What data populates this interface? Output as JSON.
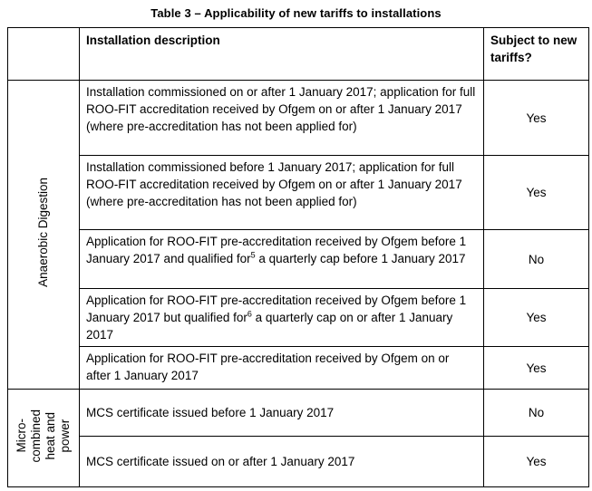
{
  "title": "Table 3 – Applicability of new tariffs to installations",
  "colors": {
    "background": "#ffffff",
    "border": "#000000",
    "text": "#000000"
  },
  "table": {
    "columns": {
      "category_header": "",
      "description_header": "Installation description",
      "subject_header": "Subject to new tariffs?"
    },
    "sections": [
      {
        "category": "Anaerobic Digestion",
        "rows": [
          {
            "description": "Installation commissioned on or after 1 January 2017; application for full ROO-FIT accreditation received by Ofgem on or after 1 January 2017 (where pre-accreditation has not been applied for)",
            "subject": "Yes"
          },
          {
            "description": "Installation commissioned before 1 January 2017; application for full ROO-FIT accreditation received by Ofgem on or after 1 January 2017 (where pre-accreditation has not been applied for)",
            "subject": "Yes"
          },
          {
            "description": "Application for ROO-FIT pre-accreditation received by Ofgem before 1 January 2017 and qualified for^{5} a quarterly cap before 1 January 2017",
            "subject": "No"
          },
          {
            "description": "Application for ROO-FIT pre-accreditation received by Ofgem before 1 January 2017 but qualified for^{6} a quarterly cap on or after 1 January 2017",
            "subject": "Yes"
          },
          {
            "description": "Application for ROO-FIT pre-accreditation received by Ofgem on or after 1 January 2017",
            "subject": "Yes"
          }
        ]
      },
      {
        "category": "Micro-\ncombined\nheat and\npower",
        "rows": [
          {
            "description": "MCS certificate issued before 1 January 2017",
            "subject": "No"
          },
          {
            "description": "MCS certificate issued on or after 1 January 2017",
            "subject": "Yes"
          }
        ]
      }
    ]
  }
}
